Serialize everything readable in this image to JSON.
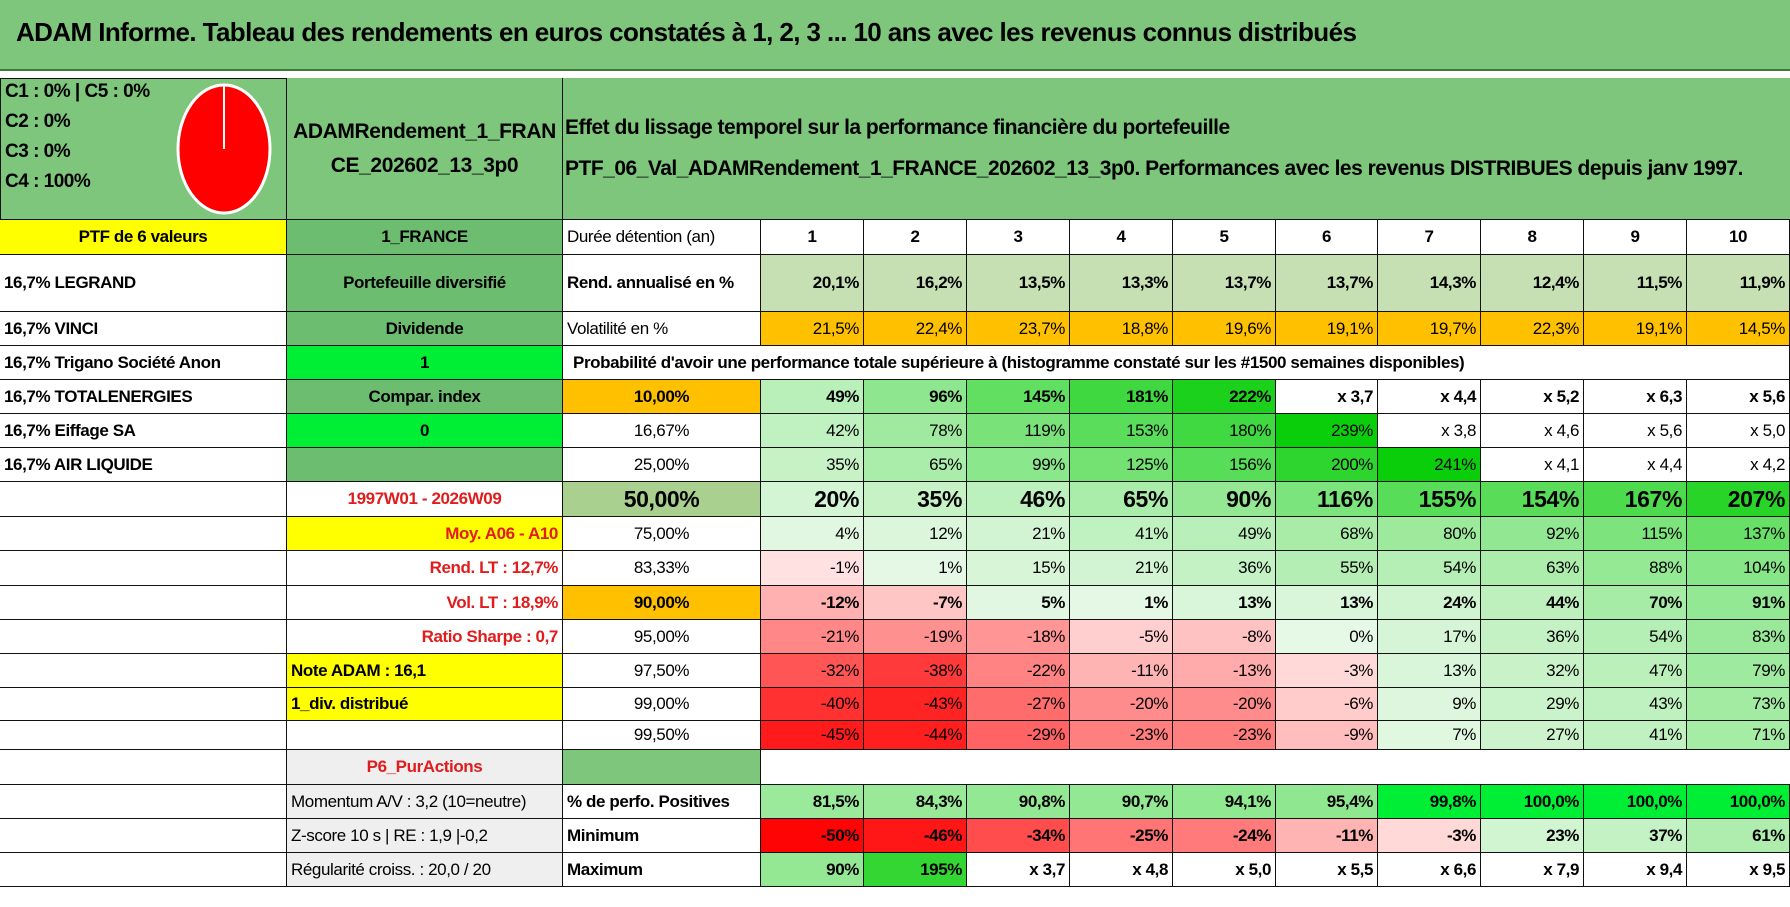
{
  "title": "ADAM Informe. Tableau des rendements en euros constatés à 1, 2, 3 ... 10 ans avec les revenus connus distribués",
  "pie": {
    "legend": [
      "C1 : 0% | C5 : 0%",
      "C2 : 0%",
      "C3 : 0%",
      "C4 : 100%"
    ],
    "slice_color": "#ff0000"
  },
  "header": {
    "portfolio_file": "ADAMRendement_1_FRANCE_202602_13_3p0",
    "portfolio_file_line1": "ADAMRendement_1_FRAN",
    "portfolio_file_line2": "CE_202602_13_3p0",
    "effect_title": "Effet du lissage temporel sur la performance financière du portefeuille",
    "effect_subtitle": "PTF_06_Val_ADAMRendement_1_FRANCE_202602_13_3p0. Performances avec les revenus DISTRIBUES depuis janv 1997."
  },
  "left": {
    "ptf_label": "PTF de 6 valeurs",
    "holdings": [
      "16,7% LEGRAND",
      "16,7% VINCI",
      "16,7% Trigano Société Anon",
      "16,7% TOTALENERGIES",
      "16,7% Eiffage SA",
      "16,7% AIR LIQUIDE"
    ],
    "market": "1_FRANCE",
    "ptf_type": "Portefeuille diversifié",
    "strategy": "Dividende",
    "value_one": "1",
    "compar_index": "Compar. index",
    "value_zero": "0",
    "period": "1997W01 - 2026W09",
    "moy": "Moy. A06 - A10",
    "rend_lt": "Rend. LT : 12,7%",
    "vol_lt": "Vol. LT : 18,9%",
    "sharpe": "Ratio Sharpe : 0,7",
    "note": "Note ADAM : 16,1",
    "div": "1_div. distribué",
    "purity": "P6_PurActions",
    "momentum": "Momentum A/V : 3,2 (10=neutre)",
    "zscore": "Z-score 10 s | RE : 1,9 |-0,2",
    "regularity": "Régularité croiss. : 20,0 / 20"
  },
  "table": {
    "duration_label": "Durée détention (an)",
    "years": [
      "1",
      "2",
      "3",
      "4",
      "5",
      "6",
      "7",
      "8",
      "9",
      "10"
    ],
    "rend_label": "Rend. annualisé en %",
    "rend": [
      "20,1%",
      "16,2%",
      "13,5%",
      "13,3%",
      "13,7%",
      "13,7%",
      "14,3%",
      "12,4%",
      "11,5%",
      "11,9%"
    ],
    "vol_label": "Volatilité en %",
    "vol": [
      "21,5%",
      "22,4%",
      "23,7%",
      "18,8%",
      "19,6%",
      "19,1%",
      "19,7%",
      "22,3%",
      "19,1%",
      "14,5%"
    ],
    "prob_title": "Probabilité d'avoir une performance totale supérieure à (histogramme constaté sur les #1500 semaines disponibles)",
    "quantiles": [
      {
        "p": "10,00%",
        "v": [
          "49%",
          "96%",
          "145%",
          "181%",
          "222%",
          "x 3,7",
          "x 4,4",
          "x 5,2",
          "x 6,3",
          "x 5,6"
        ]
      },
      {
        "p": "16,67%",
        "v": [
          "42%",
          "78%",
          "119%",
          "153%",
          "180%",
          "239%",
          "x 3,8",
          "x 4,6",
          "x 5,6",
          "x 5,0"
        ]
      },
      {
        "p": "25,00%",
        "v": [
          "35%",
          "65%",
          "99%",
          "125%",
          "156%",
          "200%",
          "241%",
          "x 4,1",
          "x 4,4",
          "x 4,2"
        ]
      },
      {
        "p": "50,00%",
        "v": [
          "20%",
          "35%",
          "46%",
          "65%",
          "90%",
          "116%",
          "155%",
          "154%",
          "167%",
          "207%"
        ]
      },
      {
        "p": "75,00%",
        "v": [
          "4%",
          "12%",
          "21%",
          "41%",
          "49%",
          "68%",
          "80%",
          "92%",
          "115%",
          "137%"
        ]
      },
      {
        "p": "83,33%",
        "v": [
          "-1%",
          "1%",
          "15%",
          "21%",
          "36%",
          "55%",
          "54%",
          "63%",
          "88%",
          "104%"
        ]
      },
      {
        "p": "90,00%",
        "v": [
          "-12%",
          "-7%",
          "5%",
          "1%",
          "13%",
          "13%",
          "24%",
          "44%",
          "70%",
          "91%"
        ]
      },
      {
        "p": "95,00%",
        "v": [
          "-21%",
          "-19%",
          "-18%",
          "-5%",
          "-8%",
          "0%",
          "17%",
          "36%",
          "54%",
          "83%"
        ]
      },
      {
        "p": "97,50%",
        "v": [
          "-32%",
          "-38%",
          "-22%",
          "-11%",
          "-13%",
          "-3%",
          "13%",
          "32%",
          "47%",
          "79%"
        ]
      },
      {
        "p": "99,00%",
        "v": [
          "-40%",
          "-43%",
          "-27%",
          "-20%",
          "-20%",
          "-6%",
          "9%",
          "29%",
          "43%",
          "73%"
        ]
      },
      {
        "p": "99,50%",
        "v": [
          "-45%",
          "-44%",
          "-29%",
          "-23%",
          "-23%",
          "-9%",
          "7%",
          "27%",
          "41%",
          "71%"
        ]
      }
    ],
    "pos_label": "% de perfo. Positives",
    "pos": [
      "81,5%",
      "84,3%",
      "90,8%",
      "90,7%",
      "94,1%",
      "95,4%",
      "99,8%",
      "100,0%",
      "100,0%",
      "100,0%"
    ],
    "min_label": "Minimum",
    "min": [
      "-50%",
      "-46%",
      "-34%",
      "-25%",
      "-24%",
      "-11%",
      "-3%",
      "23%",
      "37%",
      "61%"
    ],
    "max_label": "Maximum",
    "max": [
      "90%",
      "195%",
      "x 3,7",
      "x 4,8",
      "x 5,0",
      "x 5,5",
      "x 6,6",
      "x 7,9",
      "x 9,4",
      "x 9,5"
    ]
  },
  "colors": {
    "green_header": "#7dc67b",
    "mid_green": "#6dbd70",
    "bright_green": "#00ee33",
    "yellow": "#ffff00",
    "orange": "#ffc000",
    "rend_bg": "#c6e0b4",
    "median_p_bg": "#a9d08e",
    "grey": "#efefef"
  }
}
